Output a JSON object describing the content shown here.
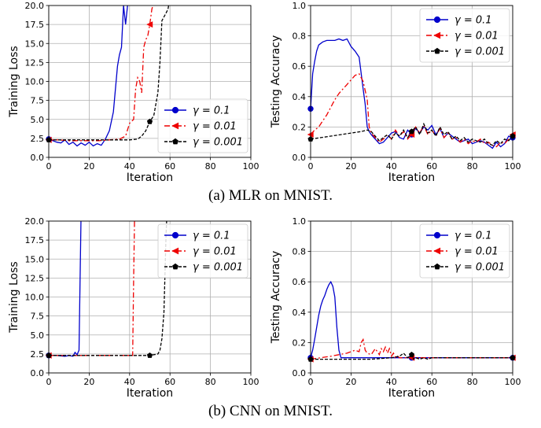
{
  "captions": {
    "a": "(a) MLR on MNIST.",
    "b": "(b) CNN on MNIST."
  },
  "legend_labels": [
    "γ = 0.1",
    "γ = 0.01",
    "γ = 0.001"
  ],
  "colors": {
    "g01": "#0000cc",
    "g001": "#ee0000",
    "g0001": "#000000"
  },
  "chart_data": [
    {
      "id": "a-loss",
      "type": "line",
      "xlabel": "Iteration",
      "ylabel": "Training Loss",
      "xlim": [
        0,
        100
      ],
      "ylim": [
        0,
        20
      ],
      "xticks": [
        "0",
        "20",
        "40",
        "60",
        "80",
        "100"
      ],
      "yticks": [
        "0.0",
        "2.5",
        "5.0",
        "7.5",
        "10.0",
        "12.5",
        "15.0",
        "17.5",
        "20.0"
      ],
      "grid": true,
      "legend": "lower-right",
      "series": [
        {
          "name": "γ = 0.1",
          "style": "solid",
          "marker": "circle",
          "x": [
            0,
            2,
            4,
            6,
            8,
            10,
            12,
            14,
            16,
            18,
            20,
            22,
            24,
            26,
            28,
            30,
            32,
            34,
            35,
            36,
            37,
            38,
            39,
            40
          ],
          "y": [
            2.4,
            2.2,
            2.0,
            1.9,
            2.3,
            1.7,
            2.0,
            1.5,
            1.9,
            1.6,
            2.0,
            1.5,
            1.8,
            1.6,
            2.4,
            3.5,
            6,
            12,
            13.5,
            14.5,
            20,
            17.5,
            20,
            21
          ]
        },
        {
          "name": "γ = 0.01",
          "style": "dashdot",
          "marker": "triangle-left",
          "x": [
            0,
            5,
            10,
            15,
            20,
            25,
            30,
            35,
            38,
            40,
            42,
            43,
            44,
            45,
            46,
            47,
            48,
            49,
            50,
            51,
            52,
            53
          ],
          "y": [
            2.3,
            2.3,
            2.2,
            2.2,
            2.2,
            2.2,
            2.3,
            2.4,
            2.8,
            4.5,
            5,
            9,
            10.5,
            10,
            8.5,
            14.5,
            15.5,
            16,
            17.5,
            19.5,
            20.5,
            22
          ]
        },
        {
          "name": "γ = 0.001",
          "style": "dashed",
          "marker": "pentagon",
          "x": [
            0,
            10,
            20,
            30,
            40,
            44,
            46,
            48,
            50,
            52,
            54,
            55,
            56,
            57,
            58,
            59,
            60
          ],
          "y": [
            2.3,
            2.3,
            2.3,
            2.3,
            2.3,
            2.4,
            2.8,
            3.5,
            4.7,
            5.5,
            8.5,
            12.5,
            18,
            18.5,
            19,
            19.5,
            21
          ]
        }
      ]
    },
    {
      "id": "a-acc",
      "type": "line",
      "xlabel": "Iteration",
      "ylabel": "Testing Accuracy",
      "xlim": [
        0,
        100
      ],
      "ylim": [
        0,
        1
      ],
      "xticks": [
        "0",
        "20",
        "40",
        "60",
        "80",
        "100"
      ],
      "yticks": [
        "0.0",
        "0.2",
        "0.4",
        "0.6",
        "0.8",
        "1.0"
      ],
      "grid": true,
      "legend": "upper-right",
      "series": [
        {
          "name": "γ = 0.1",
          "style": "solid",
          "marker": "circle",
          "x": [
            0,
            1,
            2,
            3,
            4,
            6,
            8,
            10,
            12,
            14,
            16,
            18,
            20,
            22,
            24,
            26,
            27,
            28,
            29,
            30,
            32,
            34,
            36,
            38,
            40,
            42,
            44,
            46,
            48,
            50,
            52,
            54,
            56,
            58,
            60,
            62,
            64,
            66,
            68,
            70,
            72,
            74,
            76,
            78,
            80,
            82,
            84,
            86,
            88,
            90,
            92,
            94,
            96,
            98,
            100
          ],
          "y": [
            0.32,
            0.55,
            0.63,
            0.7,
            0.74,
            0.76,
            0.77,
            0.77,
            0.77,
            0.78,
            0.77,
            0.78,
            0.73,
            0.7,
            0.66,
            0.45,
            0.35,
            0.2,
            0.17,
            0.15,
            0.12,
            0.09,
            0.1,
            0.13,
            0.16,
            0.17,
            0.13,
            0.12,
            0.18,
            0.15,
            0.19,
            0.16,
            0.2,
            0.18,
            0.21,
            0.15,
            0.19,
            0.13,
            0.16,
            0.14,
            0.12,
            0.1,
            0.11,
            0.12,
            0.09,
            0.1,
            0.11,
            0.1,
            0.08,
            0.06,
            0.1,
            0.07,
            0.09,
            0.14,
            0.13
          ]
        },
        {
          "name": "γ = 0.01",
          "style": "dashdot",
          "marker": "triangle-left",
          "x": [
            0,
            2,
            4,
            6,
            8,
            10,
            12,
            14,
            16,
            18,
            20,
            22,
            24,
            26,
            28,
            29,
            30,
            32,
            34,
            36,
            38,
            40,
            42,
            44,
            46,
            48,
            50,
            52,
            54,
            56,
            58,
            60,
            62,
            64,
            66,
            68,
            70,
            72,
            74,
            76,
            78,
            80,
            82,
            84,
            86,
            88,
            90,
            92,
            94,
            96,
            98,
            100
          ],
          "y": [
            0.15,
            0.18,
            0.2,
            0.24,
            0.28,
            0.33,
            0.38,
            0.42,
            0.45,
            0.48,
            0.51,
            0.54,
            0.55,
            0.5,
            0.38,
            0.2,
            0.16,
            0.13,
            0.1,
            0.12,
            0.15,
            0.12,
            0.18,
            0.14,
            0.17,
            0.12,
            0.15,
            0.2,
            0.16,
            0.21,
            0.15,
            0.18,
            0.14,
            0.19,
            0.13,
            0.16,
            0.12,
            0.13,
            0.1,
            0.12,
            0.09,
            0.11,
            0.1,
            0.12,
            0.09,
            0.1,
            0.08,
            0.07,
            0.1,
            0.09,
            0.12,
            0.15
          ]
        },
        {
          "name": "γ = 0.001",
          "style": "dashed",
          "marker": "pentagon",
          "x": [
            0,
            5,
            10,
            15,
            20,
            25,
            28,
            30,
            32,
            34,
            36,
            38,
            40,
            42,
            44,
            46,
            48,
            50,
            52,
            54,
            56,
            58,
            60,
            62,
            64,
            66,
            68,
            70,
            72,
            74,
            76,
            78,
            80,
            82,
            84,
            86,
            88,
            90,
            92,
            94,
            96,
            98,
            100
          ],
          "y": [
            0.12,
            0.13,
            0.14,
            0.15,
            0.16,
            0.17,
            0.18,
            0.17,
            0.14,
            0.11,
            0.13,
            0.15,
            0.12,
            0.16,
            0.14,
            0.18,
            0.13,
            0.17,
            0.2,
            0.15,
            0.22,
            0.16,
            0.18,
            0.14,
            0.2,
            0.15,
            0.17,
            0.12,
            0.14,
            0.11,
            0.13,
            0.1,
            0.12,
            0.11,
            0.1,
            0.12,
            0.09,
            0.08,
            0.11,
            0.09,
            0.12,
            0.11,
            0.14
          ]
        }
      ]
    },
    {
      "id": "b-loss",
      "type": "line",
      "xlabel": "Iteration",
      "ylabel": "Training Loss",
      "xlim": [
        0,
        100
      ],
      "ylim": [
        0,
        20
      ],
      "xticks": [
        "0",
        "20",
        "40",
        "60",
        "80",
        "100"
      ],
      "yticks": [
        "0.0",
        "2.5",
        "5.0",
        "7.5",
        "10.0",
        "12.5",
        "15.0",
        "17.5",
        "20.0"
      ],
      "grid": true,
      "legend": "upper-right",
      "series": [
        {
          "name": "γ = 0.1",
          "style": "solid",
          "marker": "circle",
          "x": [
            0,
            4,
            8,
            10,
            12,
            13,
            14,
            15,
            15.5,
            16
          ],
          "y": [
            2.3,
            2.3,
            2.2,
            2.3,
            2.2,
            2.7,
            2.4,
            3,
            12,
            21
          ]
        },
        {
          "name": "γ = 0.01",
          "style": "dashdot",
          "marker": "triangle-left",
          "x": [
            0,
            10,
            20,
            30,
            40,
            41.5,
            42,
            42.5
          ],
          "y": [
            2.3,
            2.3,
            2.3,
            2.3,
            2.3,
            2.3,
            12,
            21
          ]
        },
        {
          "name": "γ = 0.001",
          "style": "dashed",
          "marker": "pentagon",
          "x": [
            0,
            10,
            20,
            30,
            40,
            50,
            54,
            55,
            56,
            57,
            57.5,
            58,
            58.5
          ],
          "y": [
            2.3,
            2.3,
            2.3,
            2.3,
            2.3,
            2.3,
            2.5,
            3,
            4.5,
            8,
            13,
            18,
            21
          ]
        }
      ]
    },
    {
      "id": "b-acc",
      "type": "line",
      "xlabel": "Iteration",
      "ylabel": "Testing Accuracy",
      "xlim": [
        0,
        100
      ],
      "ylim": [
        0,
        1
      ],
      "xticks": [
        "0",
        "20",
        "40",
        "60",
        "80",
        "100"
      ],
      "yticks": [
        "0.0",
        "0.2",
        "0.4",
        "0.6",
        "0.8",
        "1.0"
      ],
      "grid": true,
      "legend": "upper-right",
      "series": [
        {
          "name": "γ = 0.1",
          "style": "solid",
          "marker": "circle",
          "x": [
            0,
            1,
            2,
            3,
            4,
            5,
            6,
            7,
            8,
            9,
            10,
            11,
            12,
            13,
            14,
            15,
            16,
            20,
            30,
            40,
            50,
            60,
            70,
            80,
            90,
            100
          ],
          "y": [
            0.1,
            0.15,
            0.22,
            0.3,
            0.38,
            0.44,
            0.48,
            0.51,
            0.55,
            0.58,
            0.6,
            0.57,
            0.5,
            0.3,
            0.15,
            0.1,
            0.1,
            0.1,
            0.1,
            0.1,
            0.1,
            0.1,
            0.1,
            0.1,
            0.1,
            0.1
          ]
        },
        {
          "name": "γ = 0.01",
          "style": "dashdot",
          "marker": "triangle-left",
          "x": [
            0,
            5,
            10,
            14,
            18,
            22,
            24,
            25,
            26,
            27,
            28,
            30,
            32,
            34,
            35,
            36,
            37,
            38,
            39,
            40,
            41,
            42,
            43,
            44,
            46,
            50,
            55,
            60,
            70,
            80,
            90,
            100
          ],
          "y": [
            0.09,
            0.1,
            0.11,
            0.12,
            0.13,
            0.15,
            0.14,
            0.2,
            0.22,
            0.15,
            0.13,
            0.12,
            0.16,
            0.12,
            0.16,
            0.14,
            0.17,
            0.13,
            0.16,
            0.11,
            0.13,
            0.1,
            0.11,
            0.1,
            0.1,
            0.1,
            0.1,
            0.1,
            0.1,
            0.1,
            0.1,
            0.1
          ]
        },
        {
          "name": "γ = 0.001",
          "style": "dashed",
          "marker": "pentagon",
          "x": [
            0,
            10,
            20,
            30,
            40,
            44,
            46,
            48,
            50,
            51,
            52,
            54,
            56,
            58,
            60,
            70,
            80,
            90,
            100
          ],
          "y": [
            0.09,
            0.09,
            0.09,
            0.09,
            0.1,
            0.11,
            0.13,
            0.1,
            0.12,
            0.09,
            0.1,
            0.09,
            0.1,
            0.09,
            0.1,
            0.1,
            0.1,
            0.1,
            0.1
          ]
        }
      ]
    }
  ]
}
